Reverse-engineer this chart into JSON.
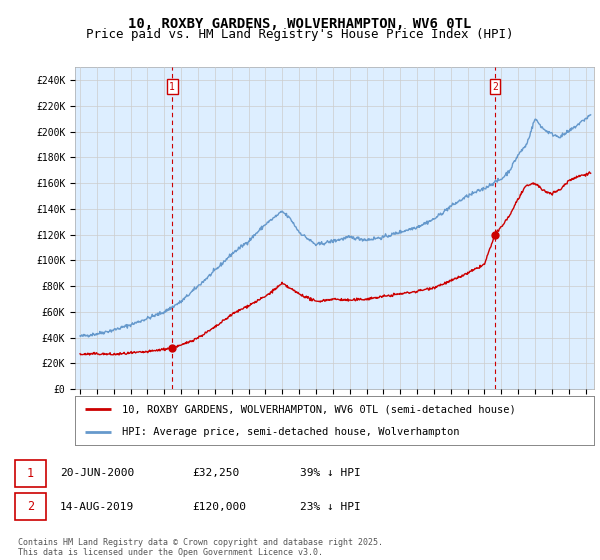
{
  "title": "10, ROXBY GARDENS, WOLVERHAMPTON, WV6 0TL",
  "subtitle": "Price paid vs. HM Land Registry's House Price Index (HPI)",
  "ylabel_ticks": [
    "£0",
    "£20K",
    "£40K",
    "£60K",
    "£80K",
    "£100K",
    "£120K",
    "£140K",
    "£160K",
    "£180K",
    "£200K",
    "£220K",
    "£240K"
  ],
  "ytick_values": [
    0,
    20000,
    40000,
    60000,
    80000,
    100000,
    120000,
    140000,
    160000,
    180000,
    200000,
    220000,
    240000
  ],
  "ylim": [
    0,
    250000
  ],
  "xlim_start": 1994.7,
  "xlim_end": 2025.5,
  "sale1_x": 2000.47,
  "sale1_y": 32250,
  "sale2_x": 2019.62,
  "sale2_y": 120000,
  "vline1_x": 2000.47,
  "vline2_x": 2019.62,
  "hpi_color": "#6699cc",
  "hpi_fill_color": "#ddeeff",
  "sale_color": "#cc0000",
  "vline_color": "#cc0000",
  "background_color": "#ffffff",
  "grid_color": "#cccccc",
  "legend1_label": "10, ROXBY GARDENS, WOLVERHAMPTON, WV6 0TL (semi-detached house)",
  "legend2_label": "HPI: Average price, semi-detached house, Wolverhampton",
  "annotation1": "20-JUN-2000",
  "annotation1_price": "£32,250",
  "annotation1_hpi": "39% ↓ HPI",
  "annotation2": "14-AUG-2019",
  "annotation2_price": "£120,000",
  "annotation2_hpi": "23% ↓ HPI",
  "footnote": "Contains HM Land Registry data © Crown copyright and database right 2025.\nThis data is licensed under the Open Government Licence v3.0.",
  "title_fontsize": 10,
  "subtitle_fontsize": 9,
  "hpi_anchors_x": [
    1995,
    1996,
    1997,
    1998,
    1999,
    2000,
    2001,
    2002,
    2003,
    2004,
    2005,
    2006,
    2007,
    2007.5,
    2008,
    2009,
    2010,
    2011,
    2012,
    2013,
    2014,
    2015,
    2016,
    2017,
    2018,
    2019,
    2019.5,
    2020,
    2020.5,
    2021,
    2021.5,
    2022,
    2022.5,
    2023,
    2023.5,
    2024,
    2024.5,
    2025.3
  ],
  "hpi_anchors_y": [
    41000,
    43000,
    46000,
    50000,
    55000,
    60000,
    68000,
    80000,
    92000,
    105000,
    115000,
    128000,
    138000,
    132000,
    122000,
    112000,
    115000,
    118000,
    116000,
    118000,
    122000,
    126000,
    132000,
    142000,
    150000,
    156000,
    160000,
    163000,
    170000,
    182000,
    190000,
    210000,
    202000,
    198000,
    196000,
    200000,
    205000,
    213000
  ],
  "sale_anchors_x": [
    1995,
    1996,
    1997,
    1998,
    1999,
    2000,
    2000.47,
    2001,
    2002,
    2003,
    2004,
    2005,
    2006,
    2007,
    2007.5,
    2008,
    2009,
    2010,
    2011,
    2012,
    2013,
    2014,
    2015,
    2016,
    2017,
    2018,
    2019,
    2019.62,
    2020,
    2020.5,
    2021,
    2021.5,
    2022,
    2022.5,
    2023,
    2023.5,
    2024,
    2024.5,
    2025.3
  ],
  "sale_anchors_y": [
    27000,
    27500,
    27000,
    28000,
    29000,
    31000,
    32250,
    34000,
    40000,
    48000,
    58000,
    65000,
    72000,
    82000,
    78000,
    74000,
    68000,
    70000,
    69000,
    70000,
    72000,
    74000,
    76000,
    79000,
    84000,
    90000,
    97000,
    120000,
    126000,
    135000,
    148000,
    158000,
    160000,
    154000,
    152000,
    155000,
    162000,
    165000,
    168000
  ]
}
